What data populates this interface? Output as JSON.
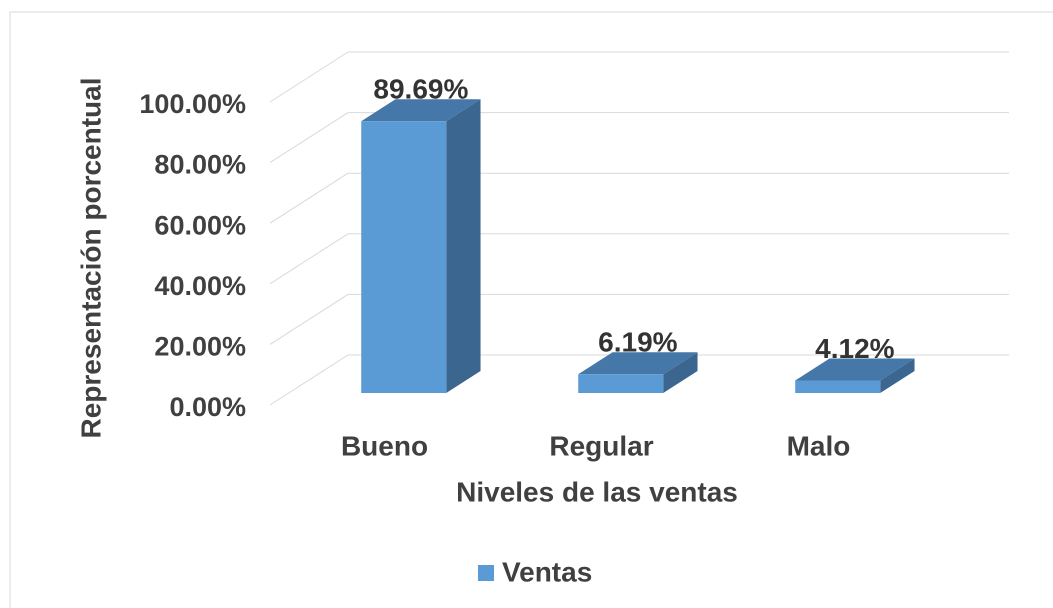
{
  "chart_data": {
    "type": "bar3d",
    "categories": [
      "Bueno",
      "Regular",
      "Malo"
    ],
    "series": [
      {
        "name": "Ventas",
        "color": "#5b9bd5",
        "values": [
          89.69,
          6.19,
          4.12
        ],
        "value_labels": [
          "89.69%",
          "6.19%",
          "4.12%"
        ]
      }
    ],
    "ylim": [
      0,
      100
    ],
    "yticks": [
      {
        "value": 0,
        "label": "0.00%"
      },
      {
        "value": 20,
        "label": "20.00%"
      },
      {
        "value": 40,
        "label": "40.00%"
      },
      {
        "value": 60,
        "label": "60.00%"
      },
      {
        "value": 80,
        "label": "80.00%"
      },
      {
        "value": 100,
        "label": "100.00%"
      }
    ],
    "xlabel": "Niveles de las ventas",
    "ylabel": "Representación porcentual",
    "grid": true,
    "legend": "bottom"
  }
}
